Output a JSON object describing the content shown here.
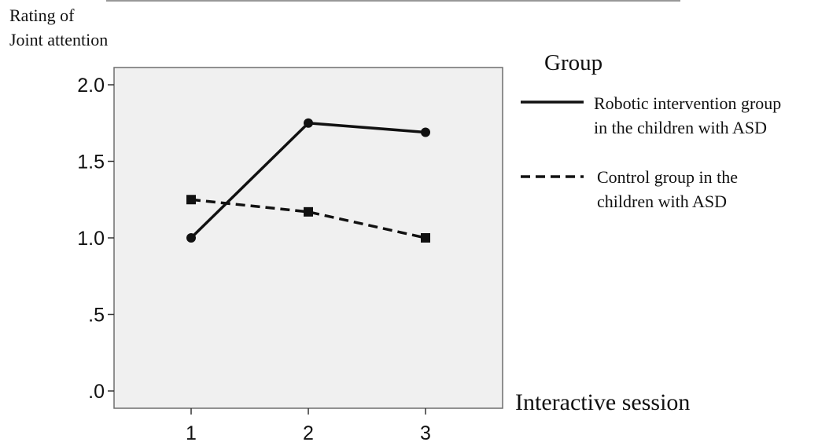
{
  "chart_data": {
    "type": "line",
    "title": "",
    "ylabel_line1": "Rating of",
    "ylabel_line2": "Joint attention",
    "xlabel": "Interactive session",
    "x": [
      1,
      2,
      3
    ],
    "x_tick_labels": [
      "1",
      "2",
      "3"
    ],
    "ylim": [
      0.0,
      2.1
    ],
    "y_ticks": [
      0.0,
      0.5,
      1.0,
      1.5,
      2.0
    ],
    "y_tick_labels": [
      ".0",
      ".5",
      "1.0",
      "1.5",
      "2.0"
    ],
    "grid": false,
    "plot_background": "#f0f0f0",
    "legend": {
      "title": "Group",
      "placement": "right",
      "entries": [
        {
          "line1": "Robotic intervention group",
          "line2": "in the children with ASD",
          "style": "solid"
        },
        {
          "line1": "Control group in the",
          "line2": "children with ASD",
          "style": "dashed"
        }
      ]
    },
    "series": [
      {
        "values": [
          1.0,
          1.75,
          1.69
        ],
        "line_style": "solid",
        "marker": "circle",
        "color": "#111111"
      },
      {
        "values": [
          1.25,
          1.17,
          1.0
        ],
        "line_style": "dashed",
        "marker": "square",
        "color": "#111111"
      }
    ]
  }
}
